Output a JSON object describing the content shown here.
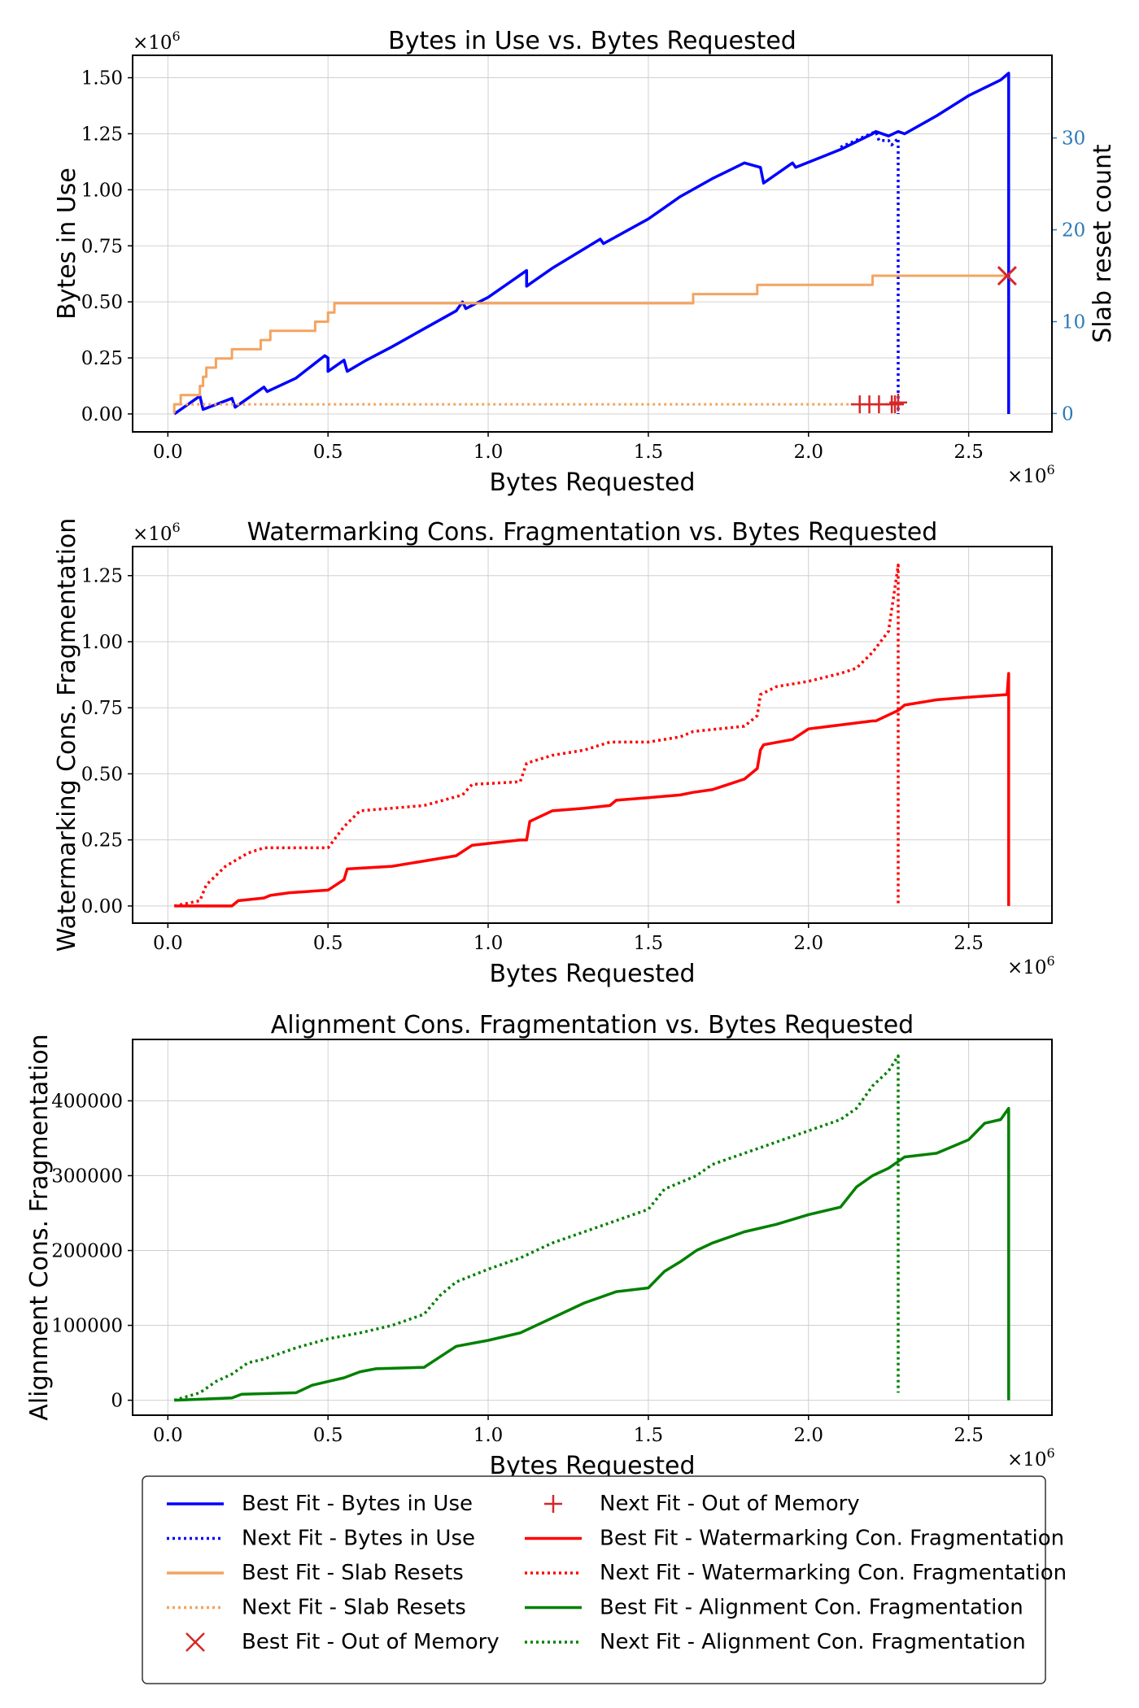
{
  "chart_data": [
    {
      "type": "line",
      "title": "Bytes in Use vs. Bytes Requested",
      "xlabel": "Bytes Requested",
      "ylabel": "Bytes in Use",
      "y2label": "Slab reset count",
      "x_multiplier": "×10⁶",
      "y_multiplier": "×10⁶",
      "xlim": [
        -0.11,
        2.76
      ],
      "ylim": [
        -0.08,
        1.6
      ],
      "y2lim": [
        -2,
        39
      ],
      "x_ticks": [
        "0.0",
        "0.5",
        "1.0",
        "1.5",
        "2.0",
        "2.5"
      ],
      "y_ticks": [
        "0.00",
        "0.25",
        "0.50",
        "0.75",
        "1.00",
        "1.25",
        "1.50"
      ],
      "y2_ticks": [
        "0",
        "10",
        "20",
        "30"
      ],
      "grid": true,
      "series": [
        {
          "name": "Best Fit - Bytes in Use",
          "axis": "left",
          "color": "#0000ff",
          "style": "solid",
          "x": [
            0.02,
            0.1,
            0.11,
            0.2,
            0.21,
            0.3,
            0.31,
            0.4,
            0.49,
            0.5,
            0.5,
            0.55,
            0.56,
            0.62,
            0.7,
            0.8,
            0.9,
            0.92,
            0.93,
            1.0,
            1.12,
            1.12,
            1.13,
            1.2,
            1.35,
            1.36,
            1.5,
            1.6,
            1.7,
            1.8,
            1.85,
            1.86,
            1.95,
            1.96,
            2.1,
            2.2,
            2.21,
            2.25,
            2.28,
            2.3,
            2.4,
            2.5,
            2.6,
            2.625,
            2.625
          ],
          "y": [
            0.0,
            0.08,
            0.02,
            0.07,
            0.03,
            0.12,
            0.1,
            0.16,
            0.26,
            0.25,
            0.19,
            0.24,
            0.19,
            0.24,
            0.3,
            0.38,
            0.46,
            0.5,
            0.47,
            0.52,
            0.64,
            0.57,
            0.58,
            0.65,
            0.78,
            0.76,
            0.87,
            0.97,
            1.05,
            1.12,
            1.1,
            1.03,
            1.12,
            1.1,
            1.18,
            1.25,
            1.26,
            1.24,
            1.26,
            1.25,
            1.33,
            1.42,
            1.49,
            1.52,
            0.0
          ]
        },
        {
          "name": "Next Fit - Bytes in Use",
          "axis": "left",
          "color": "#0000ff",
          "style": "dotted",
          "x": [
            2.1,
            2.21,
            2.22,
            2.25,
            2.26,
            2.28,
            2.28
          ],
          "y": [
            1.19,
            1.26,
            1.22,
            1.22,
            1.2,
            1.23,
            0.0
          ]
        },
        {
          "name": "Best Fit - Slab Resets",
          "axis": "right",
          "color": "#f4a460",
          "style": "solid",
          "x": [
            0.02,
            0.02,
            0.04,
            0.04,
            0.1,
            0.1,
            0.11,
            0.11,
            0.12,
            0.12,
            0.15,
            0.15,
            0.2,
            0.2,
            0.29,
            0.29,
            0.32,
            0.32,
            0.46,
            0.46,
            0.5,
            0.5,
            0.52,
            0.52,
            0.94,
            1.64,
            1.64,
            1.84,
            1.84,
            2.2,
            2.2,
            2.62
          ],
          "y": [
            0,
            1,
            1,
            2,
            2,
            3,
            3,
            4,
            4,
            5,
            5,
            6,
            6,
            7,
            7,
            8,
            8,
            9,
            9,
            10,
            10,
            11,
            11,
            12,
            12,
            12,
            13,
            13,
            14,
            14,
            15,
            15
          ]
        },
        {
          "name": "Next Fit - Slab Resets",
          "axis": "right",
          "color": "#f4a460",
          "style": "dotted",
          "x": [
            0.02,
            2.28
          ],
          "y": [
            1,
            1
          ]
        },
        {
          "name": "Best Fit - Out of Memory",
          "axis": "right",
          "color": "#d62728",
          "marker": "x",
          "x": [
            2.62
          ],
          "y": [
            15
          ]
        },
        {
          "name": "Next Fit - Out of Memory",
          "axis": "right",
          "color": "#d62728",
          "marker": "+",
          "x": [
            2.16,
            2.19,
            2.22,
            2.26,
            2.27,
            2.28
          ],
          "y": [
            1,
            1,
            1,
            1,
            1,
            1.2
          ]
        }
      ]
    },
    {
      "type": "line",
      "title": "Watermarking Cons. Fragmentation vs. Bytes Requested",
      "xlabel": "Bytes Requested",
      "ylabel": "Watermarking Cons. Fragmentation",
      "x_multiplier": "×10⁶",
      "y_multiplier": "×10⁶",
      "xlim": [
        -0.11,
        2.76
      ],
      "ylim": [
        -0.065,
        1.36
      ],
      "x_ticks": [
        "0.0",
        "0.5",
        "1.0",
        "1.5",
        "2.0",
        "2.5"
      ],
      "y_ticks": [
        "0.00",
        "0.25",
        "0.50",
        "0.75",
        "1.00",
        "1.25"
      ],
      "grid": true,
      "series": [
        {
          "name": "Best Fit - Watermarking Con. Fragmentation",
          "color": "#ff0000",
          "style": "solid",
          "x": [
            0.02,
            0.2,
            0.22,
            0.3,
            0.32,
            0.38,
            0.5,
            0.55,
            0.56,
            0.7,
            0.8,
            0.9,
            0.95,
            1.1,
            1.12,
            1.13,
            1.2,
            1.3,
            1.38,
            1.4,
            1.5,
            1.6,
            1.64,
            1.7,
            1.8,
            1.84,
            1.85,
            1.86,
            1.95,
            2.0,
            2.2,
            2.21,
            2.28,
            2.3,
            2.4,
            2.5,
            2.62,
            2.625,
            2.625
          ],
          "y": [
            0.0,
            0.0,
            0.02,
            0.03,
            0.04,
            0.05,
            0.06,
            0.1,
            0.14,
            0.15,
            0.17,
            0.19,
            0.23,
            0.25,
            0.25,
            0.32,
            0.36,
            0.37,
            0.38,
            0.4,
            0.41,
            0.42,
            0.43,
            0.44,
            0.48,
            0.52,
            0.59,
            0.61,
            0.63,
            0.67,
            0.7,
            0.7,
            0.74,
            0.76,
            0.78,
            0.79,
            0.8,
            0.88,
            0.0
          ]
        },
        {
          "name": "Next Fit - Watermarking Con. Fragmentation",
          "color": "#ff0000",
          "style": "dotted",
          "x": [
            0.02,
            0.1,
            0.12,
            0.18,
            0.25,
            0.3,
            0.35,
            0.5,
            0.55,
            0.6,
            0.8,
            0.92,
            0.95,
            1.1,
            1.12,
            1.2,
            1.3,
            1.38,
            1.5,
            1.6,
            1.64,
            1.8,
            1.84,
            1.85,
            1.9,
            2.0,
            2.1,
            2.15,
            2.2,
            2.25,
            2.28,
            2.28
          ],
          "y": [
            0.0,
            0.02,
            0.08,
            0.15,
            0.2,
            0.22,
            0.22,
            0.22,
            0.3,
            0.36,
            0.38,
            0.42,
            0.46,
            0.47,
            0.54,
            0.57,
            0.59,
            0.62,
            0.62,
            0.64,
            0.66,
            0.68,
            0.72,
            0.8,
            0.83,
            0.85,
            0.88,
            0.9,
            0.96,
            1.04,
            1.29,
            0.0
          ]
        }
      ]
    },
    {
      "type": "line",
      "title": "Alignment Cons. Fragmentation vs. Bytes Requested",
      "xlabel": "Bytes Requested",
      "ylabel": "Alignment Cons. Fragmentation",
      "x_multiplier": "×10⁶",
      "xlim": [
        -0.11,
        2.76
      ],
      "ylim": [
        -20000,
        482000
      ],
      "x_ticks": [
        "0.0",
        "0.5",
        "1.0",
        "1.5",
        "2.0",
        "2.5"
      ],
      "y_ticks": [
        "0",
        "100000",
        "200000",
        "300000",
        "400000"
      ],
      "grid": true,
      "series": [
        {
          "name": "Best Fit - Alignment Con. Fragmentation",
          "color": "#008000",
          "style": "solid",
          "x": [
            0.02,
            0.2,
            0.23,
            0.4,
            0.45,
            0.5,
            0.55,
            0.6,
            0.65,
            0.8,
            0.85,
            0.9,
            1.0,
            1.1,
            1.2,
            1.3,
            1.4,
            1.5,
            1.55,
            1.6,
            1.65,
            1.7,
            1.8,
            1.9,
            2.0,
            2.1,
            2.15,
            2.2,
            2.25,
            2.3,
            2.4,
            2.5,
            2.55,
            2.6,
            2.625,
            2.625
          ],
          "y": [
            0,
            3000,
            8000,
            10000,
            20000,
            25000,
            30000,
            38000,
            42000,
            44000,
            58000,
            72000,
            80000,
            90000,
            110000,
            130000,
            145000,
            150000,
            172000,
            185000,
            200000,
            210000,
            225000,
            235000,
            248000,
            258000,
            285000,
            300000,
            310000,
            325000,
            330000,
            348000,
            370000,
            375000,
            390000,
            0
          ]
        },
        {
          "name": "Next Fit - Alignment Con. Fragmentation",
          "color": "#008000",
          "style": "dotted",
          "x": [
            0.02,
            0.1,
            0.15,
            0.2,
            0.25,
            0.3,
            0.4,
            0.5,
            0.6,
            0.7,
            0.8,
            0.85,
            0.9,
            1.0,
            1.1,
            1.2,
            1.3,
            1.4,
            1.5,
            1.55,
            1.65,
            1.7,
            1.8,
            1.9,
            2.0,
            2.1,
            2.15,
            2.2,
            2.25,
            2.28,
            2.28
          ],
          "y": [
            0,
            10000,
            25000,
            35000,
            50000,
            55000,
            70000,
            82000,
            90000,
            100000,
            115000,
            140000,
            158000,
            175000,
            190000,
            210000,
            225000,
            240000,
            255000,
            282000,
            300000,
            315000,
            330000,
            345000,
            360000,
            375000,
            390000,
            420000,
            440000,
            460000,
            10000
          ]
        }
      ]
    }
  ],
  "legend": {
    "columns": [
      [
        "Best Fit - Bytes in Use",
        "Next Fit - Bytes in Use",
        "Best Fit - Slab Resets",
        "Next Fit - Slab Resets",
        "Best Fit - Out of Memory"
      ],
      [
        "Next Fit - Out of Memory",
        "Best Fit - Watermarking Con. Fragmentation",
        "Next Fit - Watermarking Con. Fragmentation",
        "Best Fit - Alignment Con. Fragmentation",
        "Next Fit - Alignment Con. Fragmentation"
      ]
    ]
  }
}
